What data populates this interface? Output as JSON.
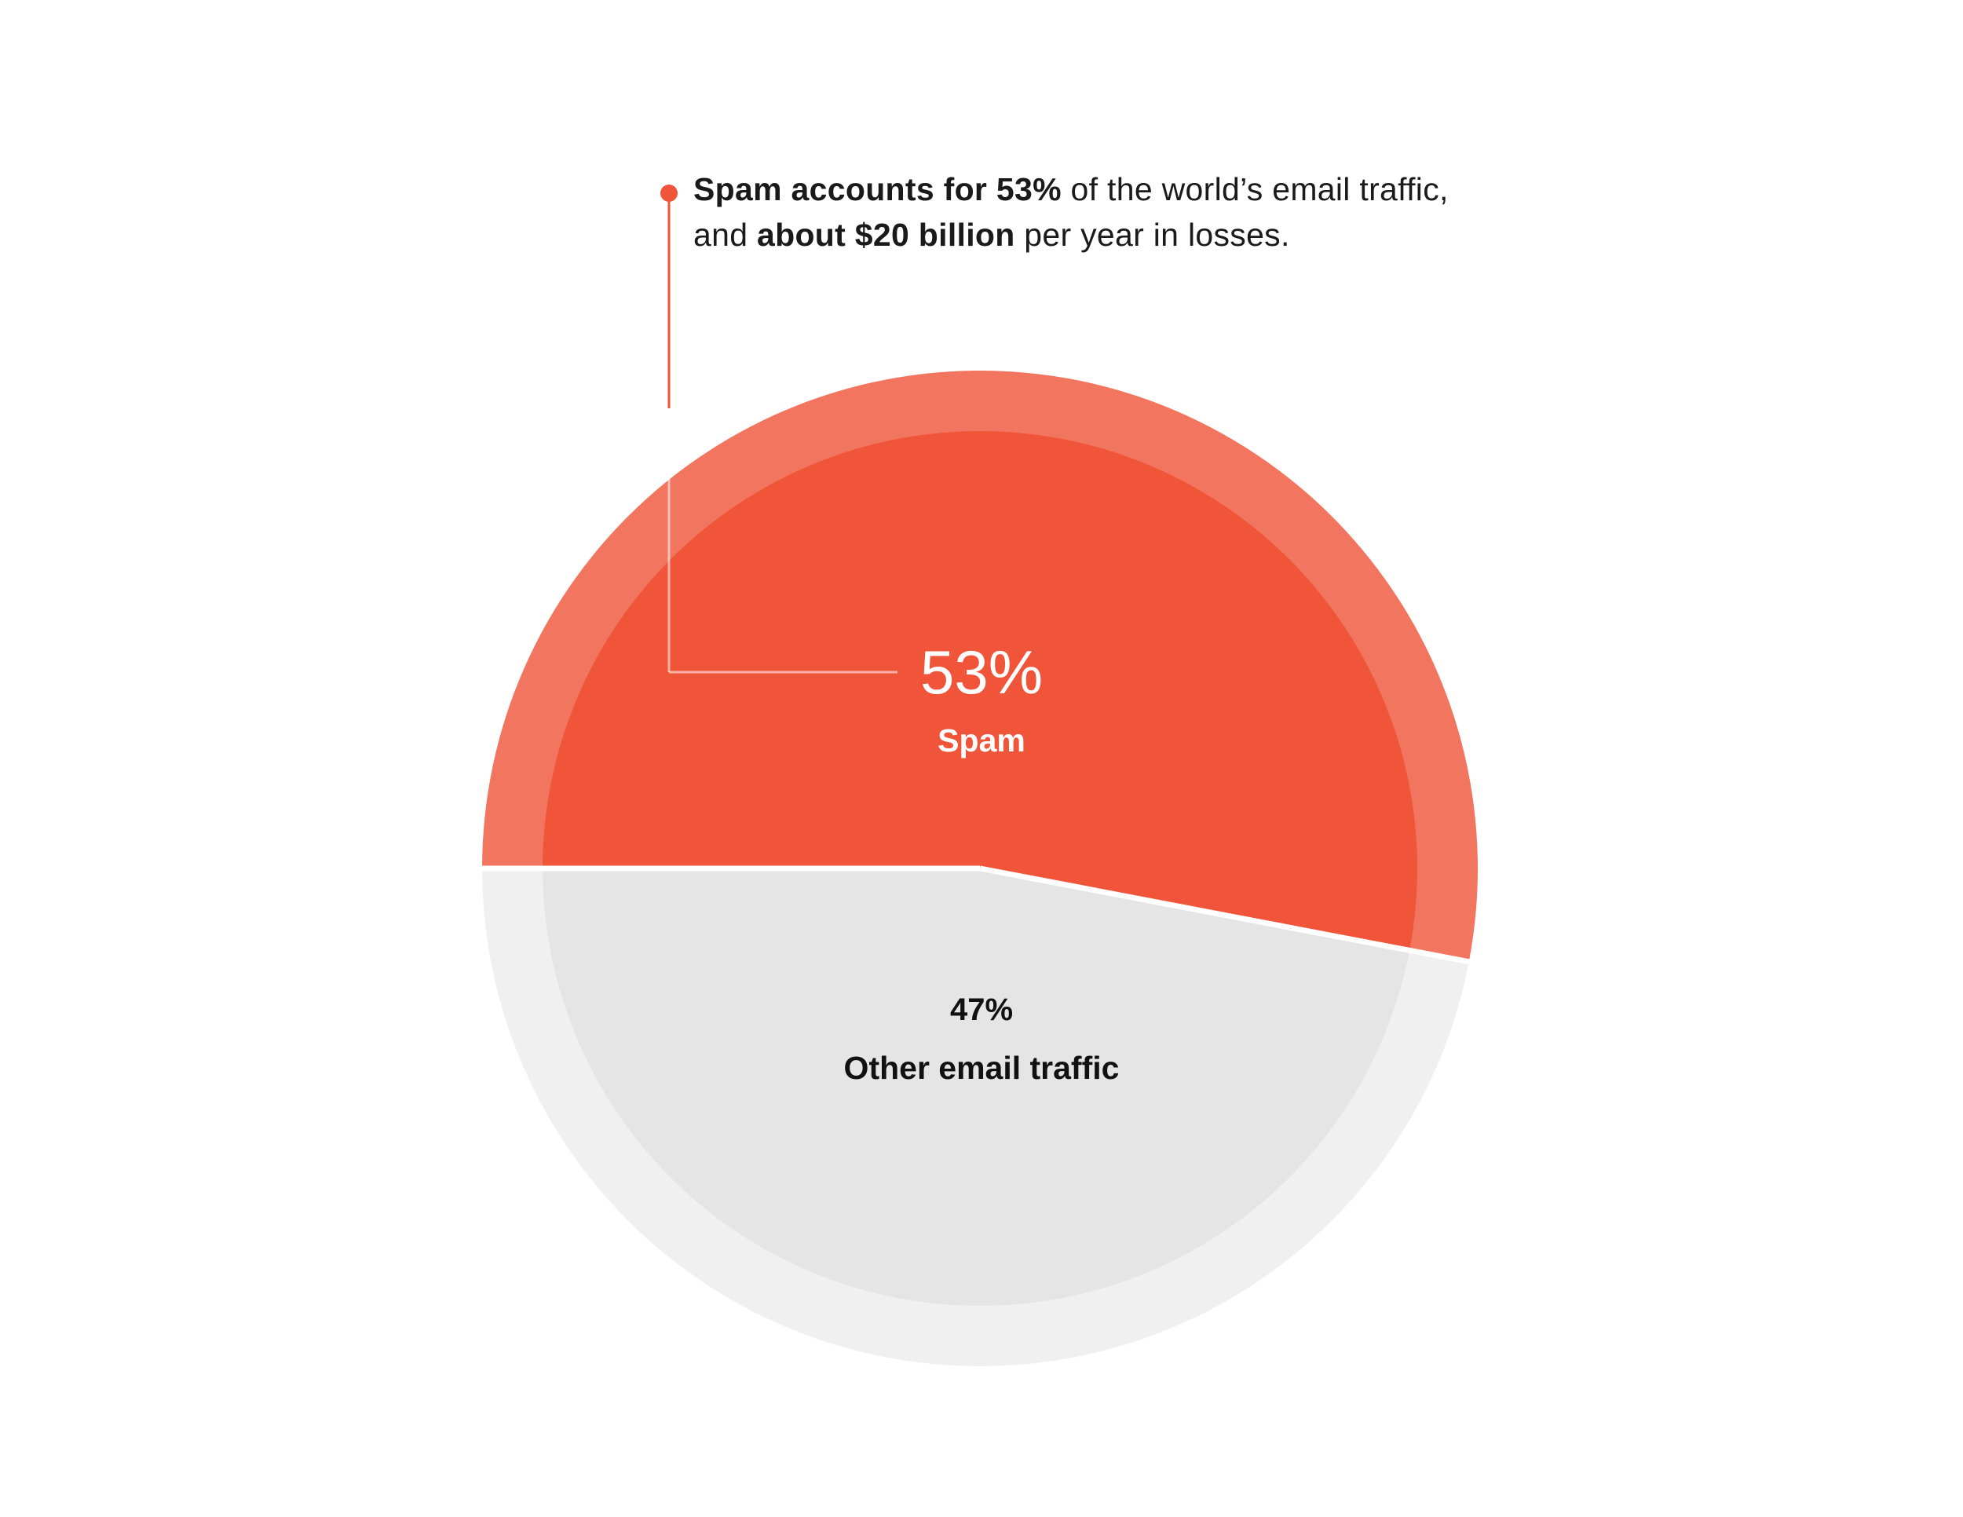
{
  "chart_data": {
    "type": "pie",
    "slices": [
      {
        "label": "Spam",
        "value": 53,
        "display": "53%",
        "color": "#f0553a",
        "ring_color": "#f27560"
      },
      {
        "label": "Other email traffic",
        "value": 47,
        "display": "47%",
        "color": "#e5e5e5",
        "ring_color": "#f0f0f0"
      }
    ]
  },
  "callout": {
    "line1_bold_a": "Spam accounts for 53%",
    "line1_regular": " of the world’s email traffic,",
    "line2_regular_a": "and ",
    "line2_bold": "about $20 billion",
    "line2_regular_b": " per year in losses.",
    "color": "#f0553a"
  }
}
